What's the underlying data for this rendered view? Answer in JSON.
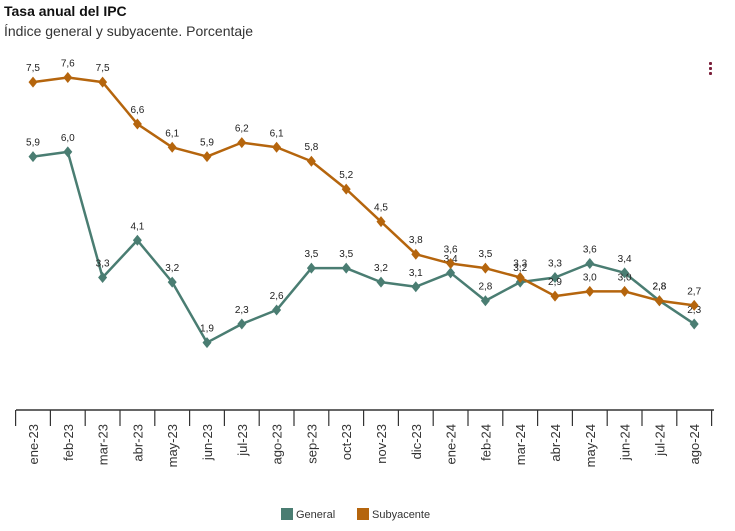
{
  "header": {
    "title": "Tasa anual del IPC",
    "subtitle": "Índice general y subyacente. Porcentaje"
  },
  "colors": {
    "general": "#4a7d72",
    "subyacente": "#b5650d",
    "axis": "#333333"
  },
  "icons": {
    "menu": "vertical-dots-menu-icon"
  },
  "chart_data": {
    "type": "line",
    "title": "Tasa anual del IPC",
    "subtitle": "Índice general y subyacente. Porcentaje",
    "xlabel": "",
    "ylabel": "",
    "ylim": [
      0,
      8
    ],
    "grid": false,
    "legend_position": "bottom",
    "categories": [
      "ene-23",
      "feb-23",
      "mar-23",
      "abr-23",
      "may-23",
      "jun-23",
      "jul-23",
      "ago-23",
      "sep-23",
      "oct-23",
      "nov-23",
      "dic-23",
      "ene-24",
      "feb-24",
      "mar-24",
      "abr-24",
      "may-24",
      "jun-24",
      "jul-24",
      "ago-24"
    ],
    "series": [
      {
        "name": "General",
        "color": "#4a7d72",
        "values": [
          5.9,
          6.0,
          3.3,
          4.1,
          3.2,
          1.9,
          2.3,
          2.6,
          3.5,
          3.5,
          3.2,
          3.1,
          3.4,
          2.8,
          3.2,
          3.3,
          3.6,
          3.4,
          2.8,
          2.3
        ],
        "labels": [
          "5,9",
          "6,0",
          "3,3",
          "4,1",
          "3,2",
          "1,9",
          "2,3",
          "2,6",
          "3,5",
          "3,5",
          "3,2",
          "3,1",
          "3,4",
          "2,8",
          "3,2",
          "3,3",
          "3,6",
          "3,4",
          "2,8",
          "2,3"
        ]
      },
      {
        "name": "Subyacente",
        "color": "#b5650d",
        "values": [
          7.5,
          7.6,
          7.5,
          6.6,
          6.1,
          5.9,
          6.2,
          6.1,
          5.8,
          5.2,
          4.5,
          3.8,
          3.6,
          3.5,
          3.3,
          2.9,
          3.0,
          3.0,
          2.8,
          2.7
        ],
        "labels": [
          "7,5",
          "7,6",
          "7,5",
          "6,6",
          "6,1",
          "5,9",
          "6,2",
          "6,1",
          "5,8",
          "5,2",
          "4,5",
          "3,8",
          "3,6",
          "3,5",
          "3,3",
          "2,9",
          "3,0",
          "3,0",
          "2,8",
          "2,7"
        ]
      }
    ]
  }
}
